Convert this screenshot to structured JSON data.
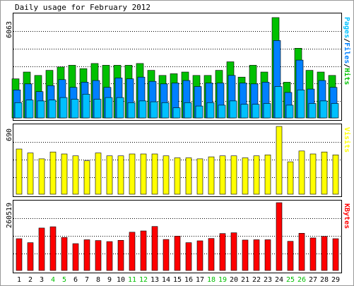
{
  "chart_data": [
    {
      "type": "bar",
      "title": "Daily usage for February 2012",
      "ymax_label": "6063",
      "ylim": [
        0,
        6063
      ],
      "grid": true,
      "legend_placement": "right (vertical text)",
      "legend": [
        {
          "name": "Pages",
          "color": "#00c0ff"
        },
        {
          "name": "Files",
          "color": "#0080ff"
        },
        {
          "name": "Hits",
          "color": "#00c000"
        }
      ],
      "legend_separator": "/",
      "categories": [
        "1",
        "2",
        "3",
        "4",
        "5",
        "6",
        "7",
        "8",
        "9",
        "10",
        "11",
        "12",
        "13",
        "14",
        "15",
        "16",
        "17",
        "18",
        "19",
        "20",
        "21",
        "22",
        "23",
        "24",
        "25",
        "26",
        "27",
        "28",
        "29"
      ],
      "series": [
        {
          "name": "Hits",
          "color": "#00c000",
          "values": [
            2300,
            2700,
            2500,
            2800,
            3000,
            3100,
            2900,
            3200,
            3100,
            3100,
            3100,
            3200,
            2800,
            2500,
            2600,
            2700,
            2500,
            2500,
            2800,
            3300,
            2400,
            3100,
            2700,
            5900,
            2100,
            4100,
            2800,
            2700,
            2500
          ]
        },
        {
          "name": "Files",
          "color": "#0080ff",
          "values": [
            1650,
            2000,
            1550,
            1900,
            2250,
            1800,
            2100,
            2200,
            1800,
            2350,
            2300,
            2400,
            2150,
            2000,
            2050,
            2200,
            1850,
            2050,
            2050,
            2500,
            2050,
            2000,
            2100,
            4550,
            1500,
            3400,
            1700,
            2200,
            1800
          ]
        },
        {
          "name": "Pages",
          "color": "#00c0ff",
          "values": [
            900,
            1050,
            1000,
            1050,
            1200,
            1100,
            1400,
            1100,
            1200,
            1200,
            900,
            1000,
            950,
            900,
            600,
            900,
            700,
            900,
            750,
            1000,
            800,
            800,
            850,
            1850,
            750,
            1650,
            850,
            1000,
            850
          ]
        }
      ]
    },
    {
      "type": "bar",
      "ymax_label": "690",
      "ylim": [
        0,
        690
      ],
      "grid": true,
      "legend": [
        {
          "name": "Visits",
          "color": "#ffff00"
        }
      ],
      "categories": [
        "1",
        "2",
        "3",
        "4",
        "5",
        "6",
        "7",
        "8",
        "9",
        "10",
        "11",
        "12",
        "13",
        "14",
        "15",
        "16",
        "17",
        "18",
        "19",
        "20",
        "21",
        "22",
        "23",
        "24",
        "25",
        "26",
        "27",
        "28",
        "29"
      ],
      "series": [
        {
          "name": "Visits",
          "color": "#ffff00",
          "values": [
            460,
            420,
            360,
            430,
            410,
            390,
            340,
            420,
            390,
            390,
            410,
            410,
            410,
            390,
            370,
            370,
            360,
            380,
            390,
            390,
            370,
            390,
            400,
            690,
            330,
            440,
            410,
            430,
            400
          ]
        }
      ]
    },
    {
      "type": "bar",
      "ymax_label": "260519",
      "ylim": [
        0,
        260519
      ],
      "grid": true,
      "legend": [
        {
          "name": "KBytes",
          "color": "#ff0000"
        }
      ],
      "categories": [
        "1",
        "2",
        "3",
        "4",
        "5",
        "6",
        "7",
        "8",
        "9",
        "10",
        "11",
        "12",
        "13",
        "14",
        "15",
        "16",
        "17",
        "18",
        "19",
        "20",
        "21",
        "22",
        "23",
        "24",
        "25",
        "26",
        "27",
        "28",
        "29"
      ],
      "weekend_categories": [
        "4",
        "5",
        "11",
        "12",
        "18",
        "19",
        "25",
        "26"
      ],
      "series": [
        {
          "name": "KBytes",
          "color": "#ff0000",
          "values": [
            122000,
            107000,
            163000,
            168000,
            127000,
            103000,
            118000,
            115000,
            111000,
            116000,
            147000,
            152000,
            169000,
            119000,
            132000,
            107000,
            114000,
            123000,
            142000,
            145000,
            117000,
            118000,
            118000,
            260519,
            112000,
            143000,
            125000,
            131000,
            122000
          ]
        }
      ]
    }
  ],
  "colors": {
    "weekday_label": "#000000",
    "weekend_label": "#00c000",
    "grid": "#000000",
    "bar_outline": "#000000"
  }
}
